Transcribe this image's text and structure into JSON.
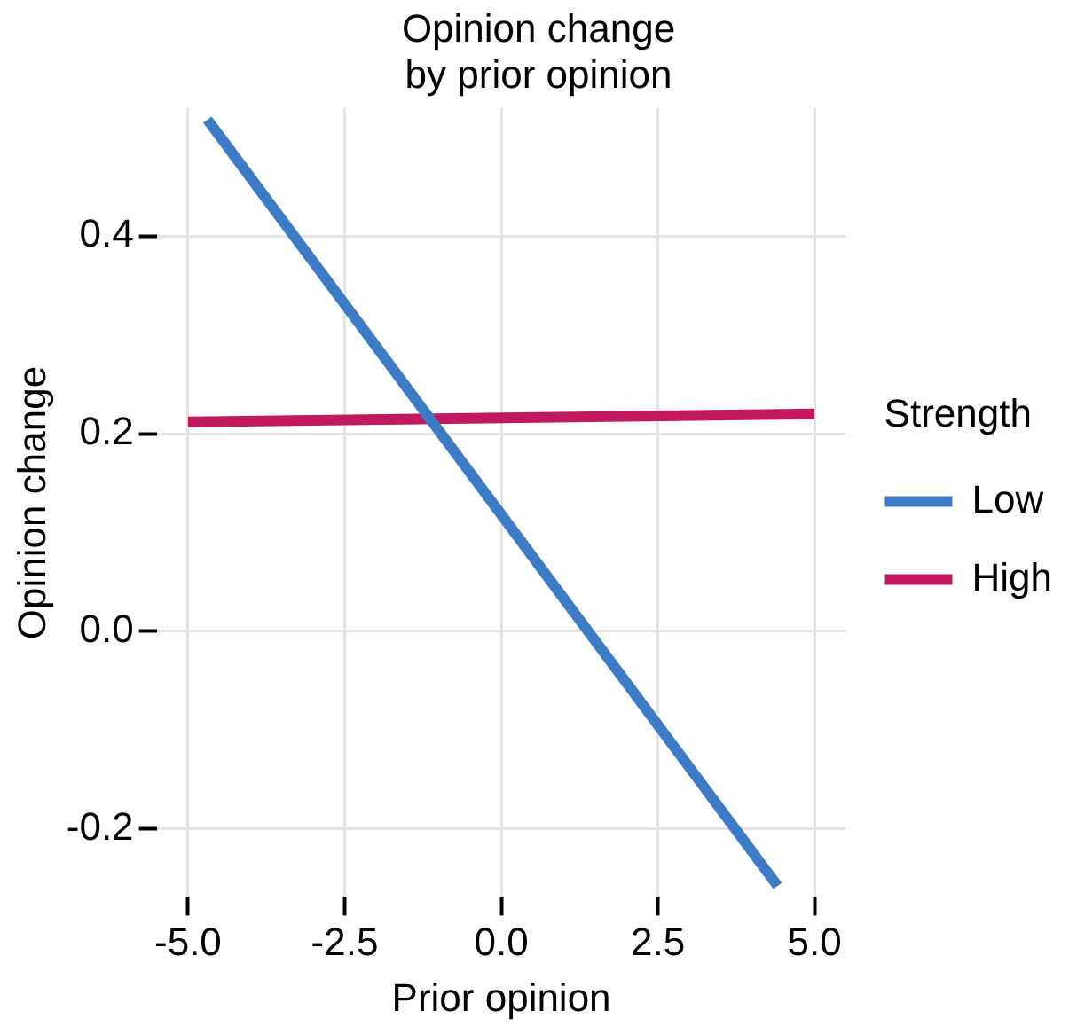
{
  "chart_data": {
    "type": "line",
    "title": "Opinion change\nby prior opinion",
    "xlabel": "Prior opinion",
    "ylabel": "Opinion change",
    "legend_title": "Strength",
    "legend": "right",
    "grid": true,
    "marker": "none",
    "line_style": "solid",
    "xlim": [
      -5.5,
      5.5
    ],
    "ylim": [
      -0.27,
      0.53
    ],
    "xticks": [
      {
        "value": -5,
        "label": "-5.0"
      },
      {
        "value": -2.5,
        "label": "-2.5"
      },
      {
        "value": 0,
        "label": "0.0"
      },
      {
        "value": 2.5,
        "label": "2.5"
      },
      {
        "value": 5,
        "label": "5.0"
      }
    ],
    "yticks": [
      {
        "value": -0.2,
        "label": "-0.2"
      },
      {
        "value": 0,
        "label": "0.0"
      },
      {
        "value": 0.2,
        "label": "0.2"
      },
      {
        "value": 0.4,
        "label": "0.4"
      }
    ],
    "series": [
      {
        "name": "Low",
        "color": "#3d7cc4",
        "x": [
          -4.69,
          4.41
        ],
        "values": [
          0.518,
          -0.258
        ]
      },
      {
        "name": "High",
        "color": "#c2185f",
        "x": [
          -5,
          5
        ],
        "values": [
          0.212,
          0.22
        ]
      }
    ]
  }
}
